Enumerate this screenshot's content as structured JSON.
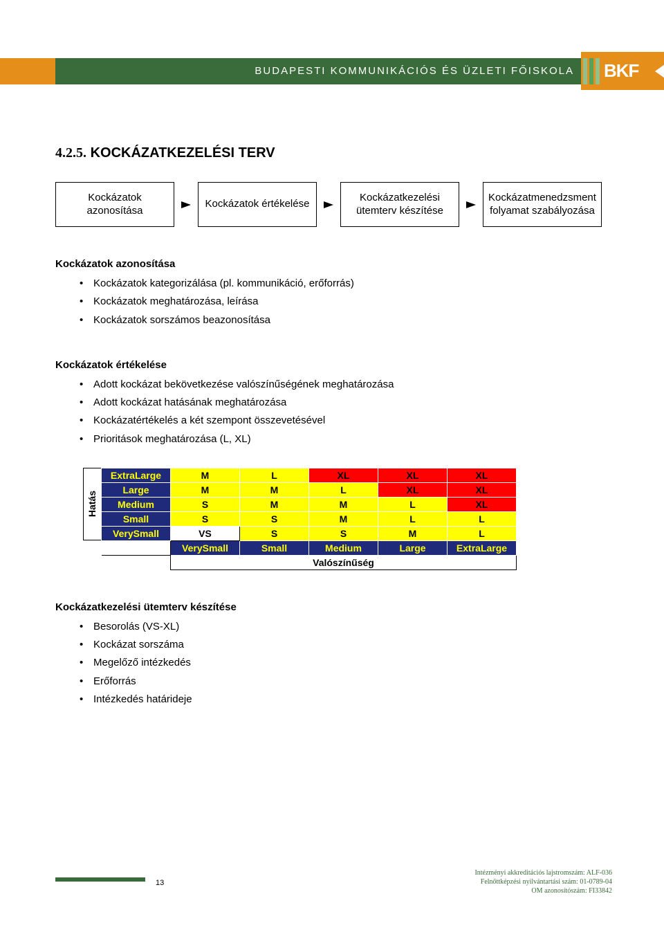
{
  "header": {
    "institution": "BUDAPESTI KOMMUNIKÁCIÓS ÉS ÜZLETI FŐISKOLA",
    "logo_text": "BKF"
  },
  "section": {
    "number": "4.2.5.",
    "title": "KOCKÁZATKEZELÉSI TERV"
  },
  "flow": {
    "boxes": [
      "Kockázatok azonosítása",
      "Kockázatok értékelése",
      "Kockázatkezelési ütemterv készítése",
      "Kockázatmenedzsment folyamat szabályozása"
    ]
  },
  "sections": [
    {
      "heading": "Kockázatok azonosítása",
      "items": [
        "Kockázatok kategorizálása (pl. kommunikáció, erőforrás)",
        "Kockázatok meghatározása, leírása",
        "Kockázatok sorszámos beazonosítása"
      ]
    },
    {
      "heading": "Kockázatok értékelése",
      "items": [
        "Adott kockázat bekövetkezése valószínűségének meghatározása",
        "Adott kockázat hatásának meghatározása",
        "Kockázatértékelés a két szempont összevetésével",
        "Prioritások meghatározása (L, XL)"
      ]
    }
  ],
  "matrix": {
    "y_axis": "Hatás",
    "x_axis": "Valószínűség",
    "row_labels": [
      "ExtraLarge",
      "Large",
      "Medium",
      "Small",
      "VerySmall"
    ],
    "col_labels": [
      "VerySmall",
      "Small",
      "Medium",
      "Large",
      "ExtraLarge"
    ],
    "cells": [
      [
        {
          "v": "M",
          "c": "y"
        },
        {
          "v": "L",
          "c": "y"
        },
        {
          "v": "XL",
          "c": "r"
        },
        {
          "v": "XL",
          "c": "r"
        },
        {
          "v": "XL",
          "c": "r"
        }
      ],
      [
        {
          "v": "M",
          "c": "y"
        },
        {
          "v": "M",
          "c": "y"
        },
        {
          "v": "L",
          "c": "y"
        },
        {
          "v": "XL",
          "c": "r"
        },
        {
          "v": "XL",
          "c": "r"
        }
      ],
      [
        {
          "v": "S",
          "c": "y"
        },
        {
          "v": "M",
          "c": "y"
        },
        {
          "v": "M",
          "c": "y"
        },
        {
          "v": "L",
          "c": "y"
        },
        {
          "v": "XL",
          "c": "r"
        }
      ],
      [
        {
          "v": "S",
          "c": "y"
        },
        {
          "v": "S",
          "c": "y"
        },
        {
          "v": "M",
          "c": "y"
        },
        {
          "v": "L",
          "c": "y"
        },
        {
          "v": "L",
          "c": "y"
        }
      ],
      [
        {
          "v": "VS",
          "c": "w"
        },
        {
          "v": "S",
          "c": "y"
        },
        {
          "v": "S",
          "c": "y"
        },
        {
          "v": "M",
          "c": "y"
        },
        {
          "v": "L",
          "c": "y"
        }
      ]
    ],
    "colors": {
      "r": "#ff0000",
      "y": "#ffff00",
      "w": "#ffffff",
      "header_bg": "#1f2a7a",
      "header_fg": "#ffff00"
    }
  },
  "section3": {
    "heading": "Kockázatkezelési ütemterv készítése",
    "items": [
      "Besorolás (VS-XL)",
      "Kockázat sorszáma",
      "Megelőző intézkedés",
      "Erőforrás",
      "Intézkedés határideje"
    ]
  },
  "footer": {
    "page": "13",
    "lines": [
      "Intézményi akkreditációs lajstromszám: ALF-036",
      "Felnőttképzési nyilvántartási szám: 01-0789-04",
      "OM azonosítószám: FI33842"
    ]
  }
}
